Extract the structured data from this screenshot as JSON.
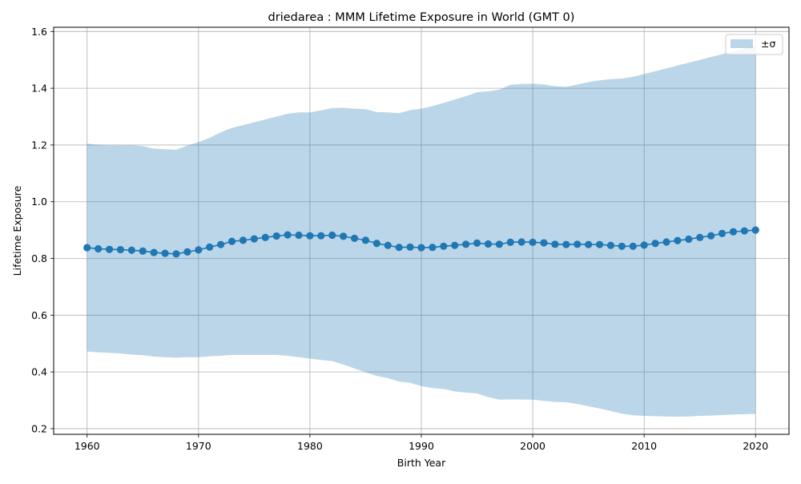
{
  "chart_data": {
    "type": "line",
    "title": "driedarea : MMM Lifetime Exposure in World (GMT 0)",
    "xlabel": "Birth Year",
    "ylabel": "Lifetime Exposure",
    "xlim": [
      1957,
      2023
    ],
    "ylim": [
      0.18,
      1.615
    ],
    "xticks": [
      1960,
      1970,
      1980,
      1990,
      2000,
      2010,
      2020
    ],
    "yticks": [
      0.2,
      0.4,
      0.6,
      0.8,
      1.0,
      1.2,
      1.4,
      1.6
    ],
    "xtick_labels": [
      "1960",
      "1970",
      "1980",
      "1990",
      "2000",
      "2010",
      "2020"
    ],
    "ytick_labels": [
      "0.2",
      "0.4",
      "0.6",
      "0.8",
      "1.0",
      "1.2",
      "1.4",
      "1.6"
    ],
    "grid": true,
    "legend_position": "top-right",
    "legend": [
      {
        "label": "±σ"
      }
    ],
    "colors": {
      "line": "#1f77b4",
      "band": "#1f77b4",
      "band_opacity": 0.3,
      "grid": "#b0b0b0"
    },
    "x": [
      1960,
      1961,
      1962,
      1963,
      1964,
      1965,
      1966,
      1967,
      1968,
      1969,
      1970,
      1971,
      1972,
      1973,
      1974,
      1975,
      1976,
      1977,
      1978,
      1979,
      1980,
      1981,
      1982,
      1983,
      1984,
      1985,
      1986,
      1987,
      1988,
      1989,
      1990,
      1991,
      1992,
      1993,
      1994,
      1995,
      1996,
      1997,
      1998,
      1999,
      2000,
      2001,
      2002,
      2003,
      2004,
      2005,
      2006,
      2007,
      2008,
      2009,
      2010,
      2011,
      2012,
      2013,
      2014,
      2015,
      2016,
      2017,
      2018,
      2019,
      2020
    ],
    "series": [
      {
        "values": [
          0.838,
          0.834,
          0.832,
          0.831,
          0.829,
          0.826,
          0.821,
          0.818,
          0.816,
          0.823,
          0.83,
          0.84,
          0.849,
          0.86,
          0.864,
          0.869,
          0.874,
          0.879,
          0.883,
          0.882,
          0.88,
          0.88,
          0.882,
          0.878,
          0.871,
          0.864,
          0.853,
          0.846,
          0.839,
          0.84,
          0.838,
          0.839,
          0.843,
          0.846,
          0.85,
          0.854,
          0.851,
          0.85,
          0.857,
          0.858,
          0.857,
          0.855,
          0.85,
          0.849,
          0.85,
          0.849,
          0.849,
          0.846,
          0.843,
          0.843,
          0.847,
          0.853,
          0.858,
          0.863,
          0.868,
          0.874,
          0.88,
          0.888,
          0.894,
          0.897,
          0.9
        ],
        "upper": [
          1.205,
          1.2,
          1.198,
          1.198,
          1.199,
          1.196,
          1.187,
          1.185,
          1.183,
          1.198,
          1.21,
          1.225,
          1.245,
          1.26,
          1.27,
          1.28,
          1.29,
          1.3,
          1.31,
          1.315,
          1.315,
          1.322,
          1.33,
          1.331,
          1.328,
          1.326,
          1.316,
          1.315,
          1.312,
          1.323,
          1.328,
          1.337,
          1.348,
          1.36,
          1.372,
          1.386,
          1.389,
          1.395,
          1.412,
          1.415,
          1.416,
          1.413,
          1.407,
          1.405,
          1.413,
          1.422,
          1.428,
          1.432,
          1.434,
          1.44,
          1.45,
          1.46,
          1.47,
          1.48,
          1.49,
          1.5,
          1.51,
          1.52,
          1.53,
          1.54,
          1.55
        ],
        "lower": [
          0.472,
          0.469,
          0.467,
          0.465,
          0.461,
          0.459,
          0.454,
          0.452,
          0.45,
          0.452,
          0.452,
          0.455,
          0.457,
          0.46,
          0.46,
          0.46,
          0.46,
          0.46,
          0.457,
          0.452,
          0.447,
          0.442,
          0.438,
          0.426,
          0.412,
          0.399,
          0.386,
          0.378,
          0.366,
          0.361,
          0.35,
          0.343,
          0.34,
          0.331,
          0.327,
          0.324,
          0.311,
          0.302,
          0.303,
          0.303,
          0.302,
          0.298,
          0.294,
          0.293,
          0.287,
          0.279,
          0.271,
          0.262,
          0.253,
          0.247,
          0.245,
          0.244,
          0.243,
          0.242,
          0.243,
          0.245,
          0.246,
          0.248,
          0.25,
          0.251,
          0.252
        ]
      }
    ]
  }
}
